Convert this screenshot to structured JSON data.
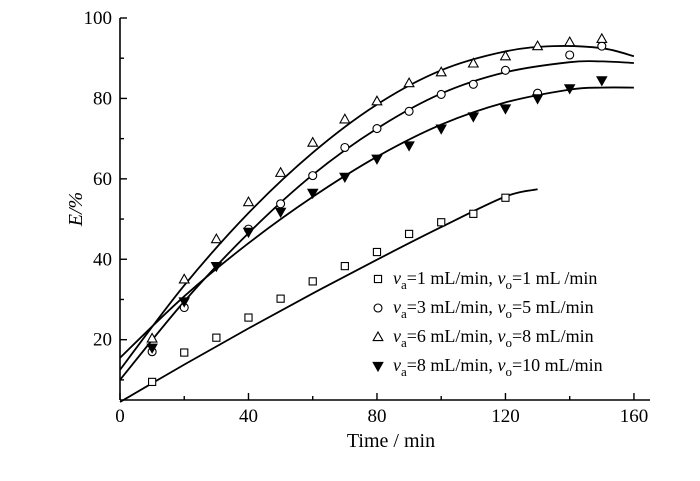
{
  "chart_data": {
    "type": "scatter",
    "xlabel": "Time / min",
    "ylabel": "E/%",
    "xlim": [
      0,
      165
    ],
    "ylim": [
      5,
      100
    ],
    "xticks": [
      0,
      40,
      80,
      120,
      160
    ],
    "yticks": [
      20,
      40,
      60,
      80,
      100
    ],
    "grid": false,
    "legend_position": "bottom-right",
    "series": [
      {
        "key": "s1",
        "legend": {
          "va": "1 mL/min",
          "sep": ", ",
          "vo": "1 mL /min"
        },
        "marker": "square-open",
        "points": [
          [
            10,
            9.5
          ],
          [
            20,
            16.8
          ],
          [
            30,
            20.5
          ],
          [
            40,
            25.5
          ],
          [
            50,
            30.2
          ],
          [
            60,
            34.5
          ],
          [
            70,
            38.3
          ],
          [
            80,
            41.8
          ],
          [
            90,
            46.3
          ],
          [
            100,
            49.2
          ],
          [
            110,
            51.3
          ],
          [
            120,
            55.3
          ]
        ],
        "fit": [
          [
            0,
            4.5
          ],
          [
            20,
            13.8
          ],
          [
            40,
            22.8
          ],
          [
            60,
            31.5
          ],
          [
            80,
            39.9
          ],
          [
            100,
            48
          ],
          [
            120,
            55.6
          ],
          [
            130,
            57.4
          ]
        ]
      },
      {
        "key": "s2",
        "legend": {
          "va": "3 mL/min",
          "sep": ", ",
          "vo": "5 mL/min"
        },
        "marker": "circle-open",
        "points": [
          [
            10,
            17
          ],
          [
            20,
            28
          ],
          [
            40,
            47.5
          ],
          [
            50,
            53.8
          ],
          [
            60,
            60.8
          ],
          [
            70,
            67.8
          ],
          [
            80,
            72.5
          ],
          [
            90,
            76.8
          ],
          [
            100,
            81
          ],
          [
            110,
            83.5
          ],
          [
            120,
            87
          ],
          [
            130,
            81.3
          ],
          [
            140,
            90.8
          ],
          [
            150,
            93
          ]
        ],
        "fit": [
          [
            0,
            10
          ],
          [
            20,
            29.5
          ],
          [
            40,
            46.5
          ],
          [
            60,
            61
          ],
          [
            80,
            72.5
          ],
          [
            100,
            81.2
          ],
          [
            120,
            86.5
          ],
          [
            140,
            89
          ],
          [
            150,
            89.2
          ],
          [
            160,
            88.8
          ]
        ]
      },
      {
        "key": "s3",
        "legend": {
          "va": "6 mL/min",
          "sep": ", ",
          "vo": "8 mL/min"
        },
        "marker": "triangle-open",
        "points": [
          [
            10,
            20.3
          ],
          [
            20,
            35
          ],
          [
            30,
            45
          ],
          [
            40,
            54.2
          ],
          [
            50,
            61.5
          ],
          [
            60,
            69
          ],
          [
            70,
            74.8
          ],
          [
            80,
            79.3
          ],
          [
            90,
            83.8
          ],
          [
            100,
            86.5
          ],
          [
            110,
            88.7
          ],
          [
            120,
            90.5
          ],
          [
            130,
            93
          ],
          [
            140,
            94
          ],
          [
            150,
            94.8
          ]
        ],
        "fit": [
          [
            0,
            12.5
          ],
          [
            20,
            33.5
          ],
          [
            40,
            51.5
          ],
          [
            60,
            66.5
          ],
          [
            80,
            78.5
          ],
          [
            100,
            87
          ],
          [
            120,
            91.7
          ],
          [
            135,
            93
          ],
          [
            150,
            92.5
          ],
          [
            160,
            90.5
          ]
        ]
      },
      {
        "key": "s4",
        "legend": {
          "va": "8 mL/min",
          "sep": ", ",
          "vo": "10 mL/min"
        },
        "marker": "triangle-down-filled",
        "points": [
          [
            10,
            18
          ],
          [
            20,
            29.5
          ],
          [
            30,
            38.3
          ],
          [
            40,
            46.8
          ],
          [
            50,
            51.8
          ],
          [
            60,
            56.5
          ],
          [
            70,
            60.5
          ],
          [
            80,
            65
          ],
          [
            90,
            68.3
          ],
          [
            100,
            72.5
          ],
          [
            110,
            75.5
          ],
          [
            120,
            77.5
          ],
          [
            130,
            80
          ],
          [
            140,
            82.5
          ],
          [
            150,
            84.5
          ]
        ],
        "fit": [
          [
            0,
            15.5
          ],
          [
            20,
            30.8
          ],
          [
            40,
            44
          ],
          [
            60,
            55.5
          ],
          [
            80,
            65.5
          ],
          [
            100,
            73.5
          ],
          [
            120,
            79
          ],
          [
            140,
            82.2
          ],
          [
            150,
            82.7
          ],
          [
            160,
            82.7
          ]
        ]
      }
    ]
  }
}
